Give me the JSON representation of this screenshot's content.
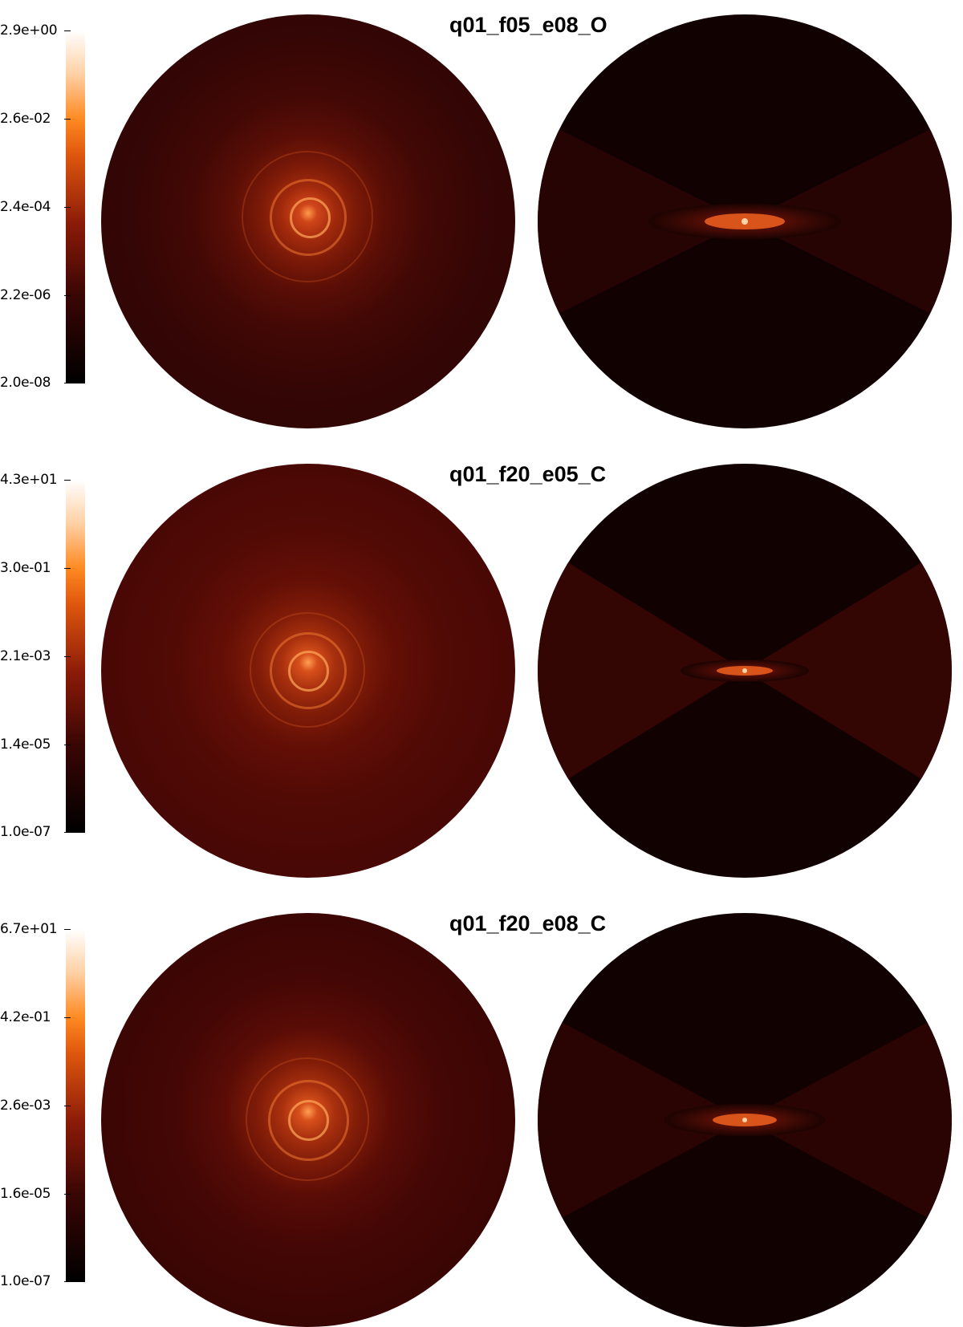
{
  "panels": [
    {
      "title": "q01_f05_e08_O",
      "colorbar_ticks": [
        "2.9e+00",
        "2.6e-02",
        "2.4e-04",
        "2.2e-06",
        "2.0e-08"
      ]
    },
    {
      "title": "q01_f20_e05_C",
      "colorbar_ticks": [
        "4.3e+01",
        "3.0e-01",
        "2.1e-03",
        "1.4e-05",
        "1.0e-07"
      ]
    },
    {
      "title": "q01_f20_e08_C",
      "colorbar_ticks": [
        "6.7e+01",
        "4.2e-01",
        "2.6e-03",
        "1.6e-05",
        "1.0e-07"
      ]
    }
  ],
  "colors": {
    "colormap": [
      "#000000",
      "#3a0604",
      "#8a1a08",
      "#e0580e",
      "#ff8a22",
      "#ffd2a8",
      "#ffffff"
    ],
    "background": "#ffffff"
  }
}
